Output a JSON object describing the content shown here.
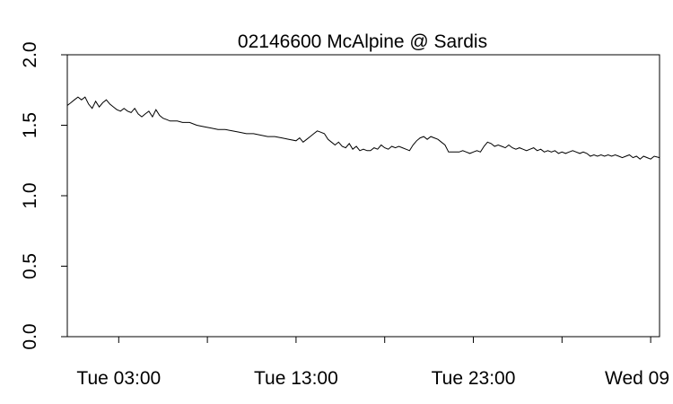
{
  "chart_data": {
    "type": "line",
    "title": "02146600 McAlpine @ Sardis",
    "xlabel": "",
    "ylabel": "",
    "ylim": [
      0,
      2.0
    ],
    "yticks": [
      "0.0",
      "0.5",
      "1.0",
      "1.5",
      "2.0"
    ],
    "x_start_hours": 0,
    "xticks": [
      {
        "label": "Tue 03:00",
        "hours": 3
      },
      {
        "label": "",
        "hours": 8
      },
      {
        "label": "Tue 13:00",
        "hours": 13
      },
      {
        "label": "",
        "hours": 18
      },
      {
        "label": "Tue 23:00",
        "hours": 23
      },
      {
        "label": "",
        "hours": 28
      },
      {
        "label": "Wed 09",
        "hours": 33
      }
    ],
    "xlim_hours": [
      0.1,
      33.5
    ],
    "series": [
      {
        "points": [
          [
            0.1,
            1.64
          ],
          [
            0.3,
            1.66
          ],
          [
            0.5,
            1.68
          ],
          [
            0.7,
            1.7
          ],
          [
            0.9,
            1.68
          ],
          [
            1.1,
            1.7
          ],
          [
            1.3,
            1.65
          ],
          [
            1.5,
            1.62
          ],
          [
            1.7,
            1.67
          ],
          [
            1.9,
            1.63
          ],
          [
            2.1,
            1.66
          ],
          [
            2.3,
            1.68
          ],
          [
            2.5,
            1.65
          ],
          [
            2.7,
            1.63
          ],
          [
            2.9,
            1.61
          ],
          [
            3.1,
            1.6
          ],
          [
            3.3,
            1.62
          ],
          [
            3.5,
            1.6
          ],
          [
            3.7,
            1.59
          ],
          [
            3.9,
            1.62
          ],
          [
            4.1,
            1.58
          ],
          [
            4.3,
            1.56
          ],
          [
            4.5,
            1.58
          ],
          [
            4.7,
            1.6
          ],
          [
            4.9,
            1.56
          ],
          [
            5.1,
            1.61
          ],
          [
            5.3,
            1.57
          ],
          [
            5.5,
            1.55
          ],
          [
            5.7,
            1.54
          ],
          [
            5.9,
            1.53
          ],
          [
            6.3,
            1.53
          ],
          [
            6.6,
            1.52
          ],
          [
            7.0,
            1.52
          ],
          [
            7.4,
            1.5
          ],
          [
            7.8,
            1.49
          ],
          [
            8.2,
            1.48
          ],
          [
            8.6,
            1.47
          ],
          [
            9.0,
            1.47
          ],
          [
            9.4,
            1.46
          ],
          [
            9.8,
            1.45
          ],
          [
            10.2,
            1.44
          ],
          [
            10.6,
            1.44
          ],
          [
            11.0,
            1.43
          ],
          [
            11.4,
            1.42
          ],
          [
            11.8,
            1.42
          ],
          [
            12.2,
            1.41
          ],
          [
            12.6,
            1.4
          ],
          [
            13.0,
            1.39
          ],
          [
            13.2,
            1.41
          ],
          [
            13.4,
            1.38
          ],
          [
            13.6,
            1.4
          ],
          [
            13.8,
            1.42
          ],
          [
            14.0,
            1.44
          ],
          [
            14.2,
            1.46
          ],
          [
            14.4,
            1.45
          ],
          [
            14.6,
            1.44
          ],
          [
            14.8,
            1.4
          ],
          [
            15.0,
            1.38
          ],
          [
            15.2,
            1.36
          ],
          [
            15.4,
            1.38
          ],
          [
            15.6,
            1.35
          ],
          [
            15.8,
            1.34
          ],
          [
            16.0,
            1.37
          ],
          [
            16.2,
            1.33
          ],
          [
            16.4,
            1.35
          ],
          [
            16.6,
            1.32
          ],
          [
            16.8,
            1.33
          ],
          [
            17.0,
            1.32
          ],
          [
            17.2,
            1.32
          ],
          [
            17.4,
            1.34
          ],
          [
            17.6,
            1.33
          ],
          [
            17.8,
            1.36
          ],
          [
            18.0,
            1.34
          ],
          [
            18.2,
            1.33
          ],
          [
            18.4,
            1.35
          ],
          [
            18.6,
            1.34
          ],
          [
            18.8,
            1.35
          ],
          [
            19.0,
            1.34
          ],
          [
            19.2,
            1.33
          ],
          [
            19.4,
            1.32
          ],
          [
            19.6,
            1.36
          ],
          [
            19.8,
            1.39
          ],
          [
            20.0,
            1.41
          ],
          [
            20.2,
            1.42
          ],
          [
            20.4,
            1.4
          ],
          [
            20.6,
            1.42
          ],
          [
            20.8,
            1.41
          ],
          [
            21.0,
            1.4
          ],
          [
            21.2,
            1.38
          ],
          [
            21.4,
            1.36
          ],
          [
            21.6,
            1.31
          ],
          [
            21.8,
            1.31
          ],
          [
            22.0,
            1.31
          ],
          [
            22.2,
            1.31
          ],
          [
            22.4,
            1.32
          ],
          [
            22.6,
            1.31
          ],
          [
            22.8,
            1.3
          ],
          [
            23.0,
            1.31
          ],
          [
            23.2,
            1.32
          ],
          [
            23.4,
            1.31
          ],
          [
            23.6,
            1.35
          ],
          [
            23.8,
            1.38
          ],
          [
            24.0,
            1.37
          ],
          [
            24.2,
            1.35
          ],
          [
            24.4,
            1.36
          ],
          [
            24.6,
            1.35
          ],
          [
            24.8,
            1.34
          ],
          [
            25.0,
            1.36
          ],
          [
            25.2,
            1.34
          ],
          [
            25.4,
            1.33
          ],
          [
            25.6,
            1.34
          ],
          [
            25.8,
            1.33
          ],
          [
            26.0,
            1.32
          ],
          [
            26.2,
            1.33
          ],
          [
            26.4,
            1.34
          ],
          [
            26.6,
            1.32
          ],
          [
            26.8,
            1.33
          ],
          [
            27.0,
            1.31
          ],
          [
            27.2,
            1.32
          ],
          [
            27.4,
            1.31
          ],
          [
            27.6,
            1.32
          ],
          [
            27.8,
            1.3
          ],
          [
            28.0,
            1.31
          ],
          [
            28.2,
            1.3
          ],
          [
            28.4,
            1.31
          ],
          [
            28.6,
            1.32
          ],
          [
            28.8,
            1.31
          ],
          [
            29.0,
            1.3
          ],
          [
            29.2,
            1.31
          ],
          [
            29.4,
            1.3
          ],
          [
            29.6,
            1.28
          ],
          [
            29.8,
            1.29
          ],
          [
            30.0,
            1.28
          ],
          [
            30.2,
            1.29
          ],
          [
            30.4,
            1.28
          ],
          [
            30.6,
            1.29
          ],
          [
            30.8,
            1.28
          ],
          [
            31.0,
            1.29
          ],
          [
            31.2,
            1.28
          ],
          [
            31.4,
            1.27
          ],
          [
            31.6,
            1.28
          ],
          [
            31.8,
            1.29
          ],
          [
            32.0,
            1.27
          ],
          [
            32.2,
            1.28
          ],
          [
            32.4,
            1.26
          ],
          [
            32.6,
            1.28
          ],
          [
            32.8,
            1.27
          ],
          [
            33.0,
            1.26
          ],
          [
            33.2,
            1.28
          ],
          [
            33.5,
            1.27
          ]
        ]
      }
    ]
  }
}
